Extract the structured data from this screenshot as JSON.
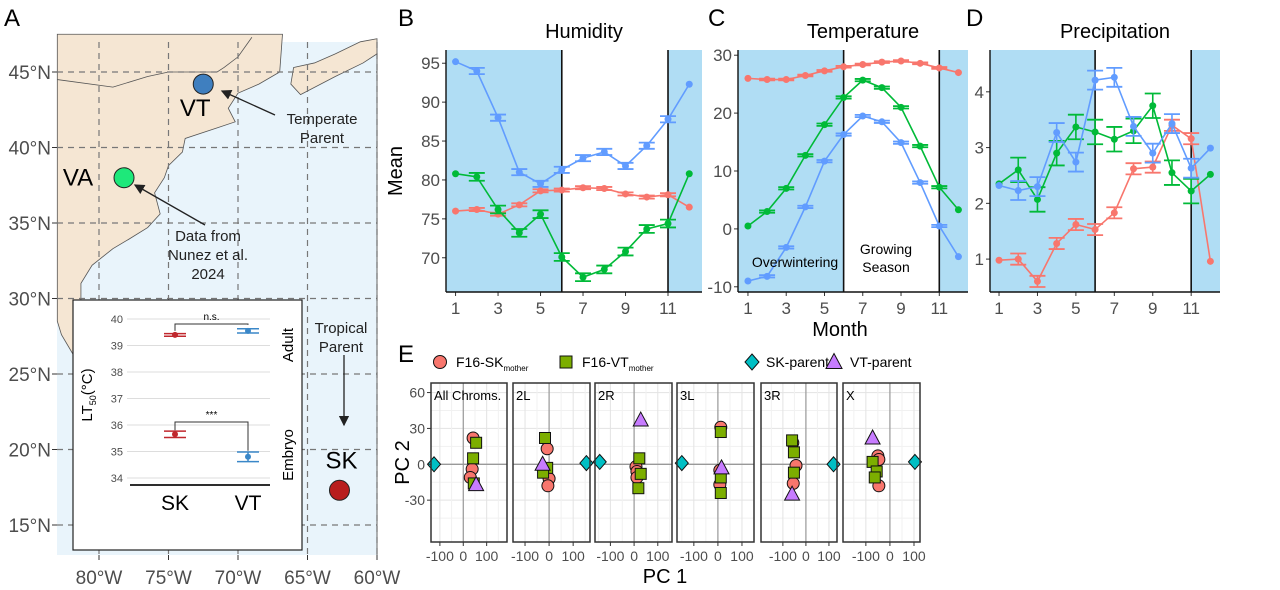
{
  "panel_labels": {
    "A": "A",
    "B": "B",
    "C": "C",
    "D": "D",
    "E": "E"
  },
  "colors": {
    "sk": "#f8766d",
    "vt": "#619cff",
    "va": "#00ba38",
    "season_shade": "#b0ddf4",
    "land": "#f5e6d3",
    "sea": "#e9f4fb"
  },
  "chart_data": [
    {
      "type": "map",
      "lat_ticks": [
        {
          "v": 45,
          "label": "45°N"
        },
        {
          "v": 40,
          "label": "40°N"
        },
        {
          "v": 35,
          "label": "35°N"
        },
        {
          "v": 30,
          "label": "30°N"
        },
        {
          "v": 25,
          "label": "25°N"
        },
        {
          "v": 20,
          "label": "20°N"
        },
        {
          "v": 15,
          "label": "15°N"
        }
      ],
      "lon_ticks": [
        {
          "v": -80,
          "label": "80°W"
        },
        {
          "v": -75,
          "label": "75°W"
        },
        {
          "v": -70,
          "label": "70°W"
        },
        {
          "v": -65,
          "label": "65°W"
        },
        {
          "v": -60,
          "label": "60°W"
        }
      ],
      "sites": [
        {
          "label": "VT",
          "lon": -72.5,
          "lat": 44.2,
          "color": "#3f7fbf"
        },
        {
          "label": "VA",
          "lon": -78.2,
          "lat": 38.0,
          "color": "#1ee87a"
        },
        {
          "label": "SK",
          "lon": -62.7,
          "lat": 17.3,
          "color": "#b81d1d"
        }
      ],
      "annotations": {
        "temperate": [
          "Temperate",
          "Parent"
        ],
        "nunez": [
          "Data from",
          "Nunez et al.",
          "2024"
        ],
        "tropical": [
          "Tropical",
          "Parent"
        ]
      },
      "inset": {
        "type": "scatter",
        "ylabel_main": "LT",
        "ylabel_sub": "50",
        "ylabel_unit": "(°C)",
        "yticks": [
          34,
          35,
          36,
          37,
          38,
          39,
          40
        ],
        "categories": [
          "SK",
          "VT"
        ],
        "point_colors": [
          "#c0272d",
          "#3a87c8"
        ],
        "groups": [
          {
            "label": "Adult",
            "values": [
              39.4,
              39.55
            ],
            "se": [
              0.05,
              0.08
            ],
            "significance": "n.s."
          },
          {
            "label": "Embryo",
            "values": [
              35.65,
              34.8
            ],
            "se": [
              0.12,
              0.18
            ],
            "significance": "***"
          }
        ]
      }
    },
    {
      "type": "line",
      "title": "Humidity",
      "ylabel": "Mean",
      "x": [
        1,
        2,
        3,
        4,
        5,
        6,
        7,
        8,
        9,
        10,
        11,
        12
      ],
      "xticks": [
        1,
        3,
        5,
        7,
        9,
        11
      ],
      "yticks": [
        70,
        75,
        80,
        85,
        90,
        95
      ],
      "xlim": [
        0.55,
        12.6
      ],
      "ylim": [
        65.6,
        96.7
      ],
      "season_boundaries": [
        6,
        11
      ],
      "series": [
        {
          "color": "#619cff",
          "values": [
            95.2,
            94.0,
            88.0,
            81.0,
            79.5,
            81.3,
            82.8,
            83.6,
            81.8,
            84.4,
            87.8,
            92.3
          ],
          "se": 0.4
        },
        {
          "color": "#f8766d",
          "values": [
            76.0,
            76.2,
            75.6,
            76.8,
            78.6,
            78.7,
            79.0,
            78.9,
            78.2,
            77.8,
            78.1,
            76.5
          ],
          "se": 0.2
        },
        {
          "color": "#00ba38",
          "values": [
            80.8,
            80.4,
            76.2,
            73.2,
            75.6,
            70.1,
            67.5,
            68.5,
            70.8,
            73.7,
            74.4,
            80.8
          ],
          "se": 0.5
        }
      ]
    },
    {
      "type": "line",
      "title": "Temperature",
      "xlabel": "Month",
      "x": [
        1,
        2,
        3,
        4,
        5,
        6,
        7,
        8,
        9,
        10,
        11,
        12
      ],
      "xticks": [
        1,
        3,
        5,
        7,
        9,
        11
      ],
      "yticks": [
        -10,
        0,
        10,
        20,
        30
      ],
      "xlim": [
        0.48,
        12.5
      ],
      "ylim": [
        -10.9,
        30.9
      ],
      "season_boundaries": [
        6,
        11
      ],
      "season_labels": {
        "overwintering": "Overwintering",
        "growing": [
          "Growing",
          "Season"
        ]
      },
      "series": [
        {
          "color": "#f8766d",
          "values": [
            26.0,
            25.8,
            25.8,
            26.5,
            27.3,
            28.0,
            28.4,
            28.8,
            29.0,
            28.6,
            27.8,
            27.0
          ],
          "se": 0.15
        },
        {
          "color": "#00ba38",
          "values": [
            0.5,
            3.0,
            7.0,
            12.7,
            18.0,
            22.7,
            25.7,
            24.4,
            21.0,
            14.3,
            7.2,
            3.3
          ],
          "se": 0.2
        },
        {
          "color": "#619cff",
          "values": [
            -9.0,
            -8.2,
            -3.2,
            3.8,
            11.7,
            16.3,
            19.5,
            18.5,
            14.9,
            8.0,
            0.5,
            -4.8
          ],
          "se": 0.2
        }
      ]
    },
    {
      "type": "line",
      "title": "Precipitation",
      "x": [
        1,
        2,
        3,
        4,
        5,
        6,
        7,
        8,
        9,
        10,
        11,
        12
      ],
      "xticks": [
        1,
        3,
        5,
        7,
        9,
        11
      ],
      "yticks": [
        1,
        2,
        3,
        4
      ],
      "xlim": [
        0.53,
        12.5
      ],
      "ylim": [
        0.41,
        4.75
      ],
      "season_boundaries": [
        6,
        11
      ],
      "series": [
        {
          "color": "#f8766d",
          "values": [
            0.98,
            1.0,
            0.6,
            1.28,
            1.62,
            1.53,
            1.83,
            2.62,
            2.65,
            3.4,
            3.16,
            0.96
          ],
          "se": 0.1
        },
        {
          "color": "#00ba38",
          "values": [
            2.35,
            2.6,
            2.07,
            2.9,
            3.37,
            3.28,
            3.15,
            3.3,
            3.75,
            2.55,
            2.22,
            2.52
          ],
          "se": 0.22
        },
        {
          "color": "#619cff",
          "values": [
            2.32,
            2.23,
            2.3,
            3.27,
            2.74,
            4.21,
            4.26,
            3.38,
            2.9,
            3.43,
            2.63,
            2.99
          ],
          "se": 0.17
        }
      ]
    },
    {
      "type": "scatter",
      "xlabel": "PC 1",
      "ylabel": "PC 2",
      "xticks": [
        -100,
        0,
        100
      ],
      "yticks": [
        -30,
        0,
        30,
        60
      ],
      "ylim": [
        -65,
        68
      ],
      "legend": [
        {
          "key": "sk_mother",
          "label": "F16-SK",
          "sub": "mother",
          "shape": "circle",
          "color": "#f8766d"
        },
        {
          "key": "vt_mother",
          "label": "F16-VT",
          "sub": "mother",
          "shape": "square",
          "color": "#7cae00"
        },
        {
          "key": "sk_parent",
          "label": "SK-parent",
          "shape": "diamond",
          "color": "#00bfc4"
        },
        {
          "key": "vt_parent",
          "label": "VT-parent",
          "shape": "triangle",
          "color": "#c77cff"
        }
      ],
      "facets": [
        {
          "label": "All Chroms.",
          "xlim": [
            -138,
            187
          ],
          "points": {
            "sk_mother": [
              [
                42,
                22
              ],
              [
                38,
                -4
              ],
              [
                30,
                -11
              ]
            ],
            "vt_mother": [
              [
                55,
                18
              ],
              [
                42,
                5
              ],
              [
                45,
                -16
              ]
            ],
            "sk_parent": [
              [
                -125,
                0
              ]
            ],
            "vt_parent": [
              [
                55,
                -17
              ]
            ]
          }
        },
        {
          "label": "2L",
          "xlim": [
            -150,
            170
          ],
          "points": {
            "sk_mother": [
              [
                -8,
                13
              ],
              [
                0,
                -12
              ],
              [
                -5,
                -18
              ]
            ],
            "vt_mother": [
              [
                -17,
                22
              ],
              [
                -8,
                -3
              ],
              [
                -25,
                -7
              ]
            ],
            "sk_parent": [
              [
                155,
                1
              ]
            ],
            "vt_parent": [
              [
                -27,
                0
              ]
            ]
          }
        },
        {
          "label": "2R",
          "xlim": [
            -165,
            160
          ],
          "points": {
            "sk_mother": [
              [
                8,
                -2
              ],
              [
                12,
                -6
              ],
              [
                12,
                -11
              ]
            ],
            "vt_mother": [
              [
                22,
                5
              ],
              [
                28,
                -8
              ],
              [
                18,
                -20
              ]
            ],
            "sk_parent": [
              [
                -145,
                2
              ]
            ],
            "vt_parent": [
              [
                28,
                37
              ]
            ]
          }
        },
        {
          "label": "3L",
          "xlim": [
            -170,
            150
          ],
          "points": {
            "sk_mother": [
              [
                12,
                31
              ],
              [
                8,
                -5
              ],
              [
                8,
                -17
              ]
            ],
            "vt_mother": [
              [
                12,
                27
              ],
              [
                12,
                -11
              ],
              [
                12,
                -24
              ]
            ],
            "sk_parent": [
              [
                -150,
                1
              ]
            ],
            "vt_parent": [
              [
                15,
                -3
              ]
            ]
          }
        },
        {
          "label": "3R",
          "xlim": [
            -195,
            135
          ],
          "points": {
            "sk_mother": [
              [
                -57,
                18
              ],
              [
                -43,
                -1
              ],
              [
                -55,
                -16
              ]
            ],
            "vt_mother": [
              [
                -60,
                20
              ],
              [
                -52,
                10
              ],
              [
                -52,
                -7
              ]
            ],
            "sk_parent": [
              [
                120,
                0
              ]
            ],
            "vt_parent": [
              [
                -60,
                -25
              ]
            ]
          }
        },
        {
          "label": "X",
          "xlim": [
            -195,
            125
          ],
          "points": {
            "sk_mother": [
              [
                -50,
                7
              ],
              [
                -46,
                4
              ],
              [
                -46,
                -18
              ]
            ],
            "vt_mother": [
              [
                -72,
                2
              ],
              [
                -55,
                -6
              ],
              [
                -63,
                -11
              ]
            ],
            "sk_parent": [
              [
                104,
                2
              ]
            ],
            "vt_parent": [
              [
                -72,
                22
              ]
            ]
          }
        }
      ]
    }
  ]
}
